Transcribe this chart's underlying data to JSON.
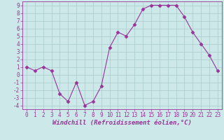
{
  "x": [
    0,
    1,
    2,
    3,
    4,
    5,
    6,
    7,
    8,
    9,
    10,
    11,
    12,
    13,
    14,
    15,
    16,
    17,
    18,
    19,
    20,
    21,
    22,
    23
  ],
  "y": [
    1,
    0.5,
    1,
    0.5,
    -2.5,
    -3.5,
    -1,
    -4,
    -3.5,
    -1.5,
    3.5,
    5.5,
    5,
    6.5,
    8.5,
    9,
    9,
    9,
    9,
    7.5,
    5.5,
    4,
    2.5,
    0.5
  ],
  "line_color": "#993399",
  "marker_color": "#993399",
  "bg_color": "#cce8e8",
  "grid_color": "#aacccc",
  "xlabel": "Windchill (Refroidissement éolien,°C)",
  "ylim": [
    -4.5,
    9.5
  ],
  "xlim": [
    -0.5,
    23.5
  ],
  "yticks": [
    -4,
    -3,
    -2,
    -1,
    0,
    1,
    2,
    3,
    4,
    5,
    6,
    7,
    8,
    9
  ],
  "xticks": [
    0,
    1,
    2,
    3,
    4,
    5,
    6,
    7,
    8,
    9,
    10,
    11,
    12,
    13,
    14,
    15,
    16,
    17,
    18,
    19,
    20,
    21,
    22,
    23
  ],
  "tick_fontsize": 5.5,
  "xlabel_fontsize": 6.5,
  "marker_size": 2.5,
  "linewidth": 0.8
}
